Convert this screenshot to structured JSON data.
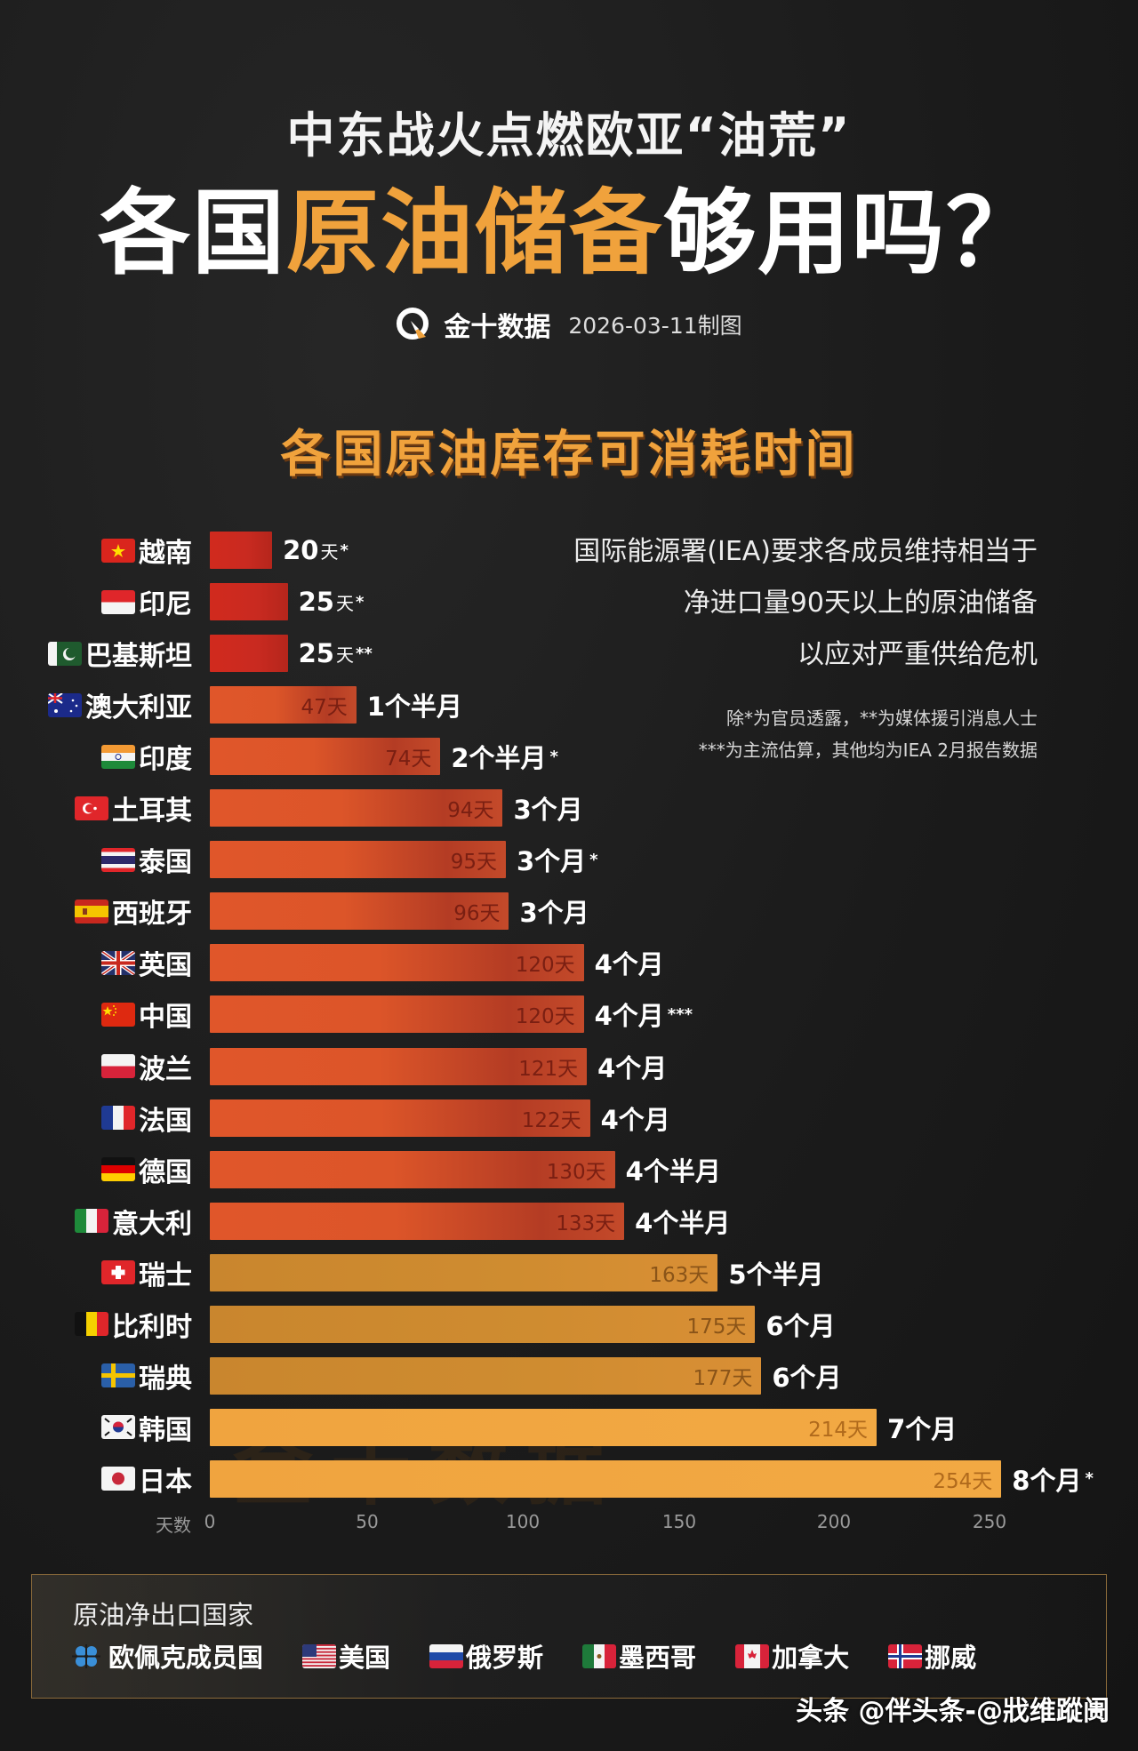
{
  "header": {
    "subtitle": "中东战火点燃欧亚“油荒”",
    "headline_part1": "各国",
    "headline_highlight": "原油储备",
    "headline_part2": "够用吗？",
    "brand_name": "金十数据",
    "date": "2026-03-11制图"
  },
  "notes": {
    "iea_lines": [
      "国际能源署(IEA)要求各成员维持相当于",
      "净进口量90天以上的原油储备",
      "以应对严重供给危机"
    ],
    "footnote_lines": [
      "除*为官员透露，**为媒体援引消息人士",
      "***为主流估算，其他均为IEA 2月报告数据"
    ]
  },
  "colors": {
    "accent": "#f0a23c",
    "tier_red": "#d12a1e",
    "tier_orange": "#dc5529",
    "tier_amber": "#cf8c30",
    "tier_gold": "#f2a943",
    "background": "#1c1c1c"
  },
  "chart_data": {
    "type": "bar",
    "orientation": "horizontal",
    "title": "各国原油库存可消耗时间",
    "xlabel": "天数",
    "ylabel": "",
    "xlim": [
      0,
      250
    ],
    "x_ticks": [
      "0",
      "50",
      "100",
      "150",
      "200",
      "250"
    ],
    "grid": false,
    "legend": null,
    "categories": [
      "越南",
      "印尼",
      "巴基斯坦",
      "澳大利亚",
      "印度",
      "土耳其",
      "泰国",
      "西班牙",
      "英国",
      "中国",
      "波兰",
      "法国",
      "德国",
      "意大利",
      "瑞士",
      "比利时",
      "瑞典",
      "韩国",
      "日本"
    ],
    "values": [
      20,
      25,
      25,
      47,
      74,
      94,
      95,
      96,
      120,
      120,
      121,
      122,
      130,
      133,
      163,
      175,
      177,
      214,
      254
    ],
    "rows": [
      {
        "country": "越南",
        "flag": "vn",
        "days": 20,
        "inner_label": "",
        "outer_label": "20",
        "outer_unit": "天",
        "mark": "*",
        "tier": "t1"
      },
      {
        "country": "印尼",
        "flag": "id",
        "days": 25,
        "inner_label": "",
        "outer_label": "25",
        "outer_unit": "天",
        "mark": "*",
        "tier": "t1"
      },
      {
        "country": "巴基斯坦",
        "flag": "pk",
        "days": 25,
        "inner_label": "",
        "outer_label": "25",
        "outer_unit": "天",
        "mark": "**",
        "tier": "t1"
      },
      {
        "country": "澳大利亚",
        "flag": "au",
        "days": 47,
        "inner_label": "47天",
        "outer_label": "1个半月",
        "outer_unit": "",
        "mark": "",
        "tier": "t2"
      },
      {
        "country": "印度",
        "flag": "in",
        "days": 74,
        "inner_label": "74天",
        "outer_label": "2个半月",
        "outer_unit": "",
        "mark": "*",
        "tier": "t2"
      },
      {
        "country": "土耳其",
        "flag": "tr",
        "days": 94,
        "inner_label": "94天",
        "outer_label": "3个月",
        "outer_unit": "",
        "mark": "",
        "tier": "t2"
      },
      {
        "country": "泰国",
        "flag": "th",
        "days": 95,
        "inner_label": "95天",
        "outer_label": "3个月",
        "outer_unit": "",
        "mark": "*",
        "tier": "t2"
      },
      {
        "country": "西班牙",
        "flag": "es",
        "days": 96,
        "inner_label": "96天",
        "outer_label": "3个月",
        "outer_unit": "",
        "mark": "",
        "tier": "t2"
      },
      {
        "country": "英国",
        "flag": "gb",
        "days": 120,
        "inner_label": "120天",
        "outer_label": "4个月",
        "outer_unit": "",
        "mark": "",
        "tier": "t2"
      },
      {
        "country": "中国",
        "flag": "cn",
        "days": 120,
        "inner_label": "120天",
        "outer_label": "4个月",
        "outer_unit": "",
        "mark": "***",
        "tier": "t2"
      },
      {
        "country": "波兰",
        "flag": "pl",
        "days": 121,
        "inner_label": "121天",
        "outer_label": "4个月",
        "outer_unit": "",
        "mark": "",
        "tier": "t2"
      },
      {
        "country": "法国",
        "flag": "fr",
        "days": 122,
        "inner_label": "122天",
        "outer_label": "4个月",
        "outer_unit": "",
        "mark": "",
        "tier": "t2"
      },
      {
        "country": "德国",
        "flag": "de",
        "days": 130,
        "inner_label": "130天",
        "outer_label": "4个半月",
        "outer_unit": "",
        "mark": "",
        "tier": "t2"
      },
      {
        "country": "意大利",
        "flag": "it",
        "days": 133,
        "inner_label": "133天",
        "outer_label": "4个半月",
        "outer_unit": "",
        "mark": "",
        "tier": "t2"
      },
      {
        "country": "瑞士",
        "flag": "ch",
        "days": 163,
        "inner_label": "163天",
        "outer_label": "5个半月",
        "outer_unit": "",
        "mark": "",
        "tier": "t3"
      },
      {
        "country": "比利时",
        "flag": "be",
        "days": 175,
        "inner_label": "175天",
        "outer_label": "6个月",
        "outer_unit": "",
        "mark": "",
        "tier": "t3"
      },
      {
        "country": "瑞典",
        "flag": "se",
        "days": 177,
        "inner_label": "177天",
        "outer_label": "6个月",
        "outer_unit": "",
        "mark": "",
        "tier": "t3"
      },
      {
        "country": "韩国",
        "flag": "kr",
        "days": 214,
        "inner_label": "214天",
        "outer_label": "7个月",
        "outer_unit": "",
        "mark": "",
        "tier": "t4"
      },
      {
        "country": "日本",
        "flag": "jp",
        "days": 254,
        "inner_label": "254天",
        "outer_label": "8个月",
        "outer_unit": "",
        "mark": "*",
        "tier": "t4"
      }
    ]
  },
  "exporters": {
    "title": "原油净出口国家",
    "items": [
      {
        "name": "欧佩克成员国",
        "flag": "opec"
      },
      {
        "name": "美国",
        "flag": "us"
      },
      {
        "name": "俄罗斯",
        "flag": "ru"
      },
      {
        "name": "墨西哥",
        "flag": "mx"
      },
      {
        "name": "加拿大",
        "flag": "ca"
      },
      {
        "name": "挪威",
        "flag": "no"
      }
    ]
  },
  "watermark": "金十数据",
  "credit": "头条 @伴头条-@戕维蹤阓"
}
